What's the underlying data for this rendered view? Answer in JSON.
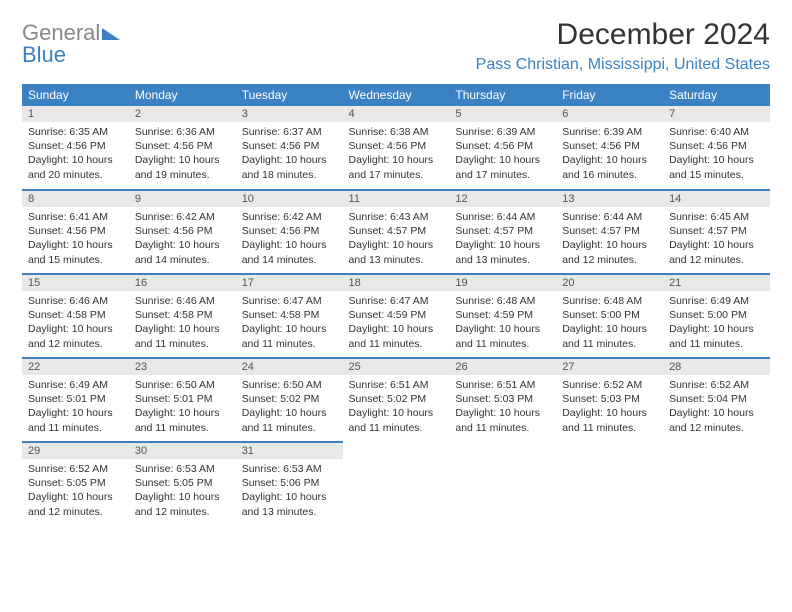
{
  "brand": {
    "part1": "General",
    "part2": "Blue"
  },
  "title": "December 2024",
  "location": "Pass Christian, Mississippi, United States",
  "colors": {
    "accent": "#3b82c4",
    "header_bg": "#3b82c4",
    "daynum_bg": "#e8e8e8",
    "text": "#333333"
  },
  "weekdays": [
    "Sunday",
    "Monday",
    "Tuesday",
    "Wednesday",
    "Thursday",
    "Friday",
    "Saturday"
  ],
  "days": [
    {
      "n": "1",
      "sr": "6:35 AM",
      "ss": "4:56 PM",
      "dl": "10 hours and 20 minutes."
    },
    {
      "n": "2",
      "sr": "6:36 AM",
      "ss": "4:56 PM",
      "dl": "10 hours and 19 minutes."
    },
    {
      "n": "3",
      "sr": "6:37 AM",
      "ss": "4:56 PM",
      "dl": "10 hours and 18 minutes."
    },
    {
      "n": "4",
      "sr": "6:38 AM",
      "ss": "4:56 PM",
      "dl": "10 hours and 17 minutes."
    },
    {
      "n": "5",
      "sr": "6:39 AM",
      "ss": "4:56 PM",
      "dl": "10 hours and 17 minutes."
    },
    {
      "n": "6",
      "sr": "6:39 AM",
      "ss": "4:56 PM",
      "dl": "10 hours and 16 minutes."
    },
    {
      "n": "7",
      "sr": "6:40 AM",
      "ss": "4:56 PM",
      "dl": "10 hours and 15 minutes."
    },
    {
      "n": "8",
      "sr": "6:41 AM",
      "ss": "4:56 PM",
      "dl": "10 hours and 15 minutes."
    },
    {
      "n": "9",
      "sr": "6:42 AM",
      "ss": "4:56 PM",
      "dl": "10 hours and 14 minutes."
    },
    {
      "n": "10",
      "sr": "6:42 AM",
      "ss": "4:56 PM",
      "dl": "10 hours and 14 minutes."
    },
    {
      "n": "11",
      "sr": "6:43 AM",
      "ss": "4:57 PM",
      "dl": "10 hours and 13 minutes."
    },
    {
      "n": "12",
      "sr": "6:44 AM",
      "ss": "4:57 PM",
      "dl": "10 hours and 13 minutes."
    },
    {
      "n": "13",
      "sr": "6:44 AM",
      "ss": "4:57 PM",
      "dl": "10 hours and 12 minutes."
    },
    {
      "n": "14",
      "sr": "6:45 AM",
      "ss": "4:57 PM",
      "dl": "10 hours and 12 minutes."
    },
    {
      "n": "15",
      "sr": "6:46 AM",
      "ss": "4:58 PM",
      "dl": "10 hours and 12 minutes."
    },
    {
      "n": "16",
      "sr": "6:46 AM",
      "ss": "4:58 PM",
      "dl": "10 hours and 11 minutes."
    },
    {
      "n": "17",
      "sr": "6:47 AM",
      "ss": "4:58 PM",
      "dl": "10 hours and 11 minutes."
    },
    {
      "n": "18",
      "sr": "6:47 AM",
      "ss": "4:59 PM",
      "dl": "10 hours and 11 minutes."
    },
    {
      "n": "19",
      "sr": "6:48 AM",
      "ss": "4:59 PM",
      "dl": "10 hours and 11 minutes."
    },
    {
      "n": "20",
      "sr": "6:48 AM",
      "ss": "5:00 PM",
      "dl": "10 hours and 11 minutes."
    },
    {
      "n": "21",
      "sr": "6:49 AM",
      "ss": "5:00 PM",
      "dl": "10 hours and 11 minutes."
    },
    {
      "n": "22",
      "sr": "6:49 AM",
      "ss": "5:01 PM",
      "dl": "10 hours and 11 minutes."
    },
    {
      "n": "23",
      "sr": "6:50 AM",
      "ss": "5:01 PM",
      "dl": "10 hours and 11 minutes."
    },
    {
      "n": "24",
      "sr": "6:50 AM",
      "ss": "5:02 PM",
      "dl": "10 hours and 11 minutes."
    },
    {
      "n": "25",
      "sr": "6:51 AM",
      "ss": "5:02 PM",
      "dl": "10 hours and 11 minutes."
    },
    {
      "n": "26",
      "sr": "6:51 AM",
      "ss": "5:03 PM",
      "dl": "10 hours and 11 minutes."
    },
    {
      "n": "27",
      "sr": "6:52 AM",
      "ss": "5:03 PM",
      "dl": "10 hours and 11 minutes."
    },
    {
      "n": "28",
      "sr": "6:52 AM",
      "ss": "5:04 PM",
      "dl": "10 hours and 12 minutes."
    },
    {
      "n": "29",
      "sr": "6:52 AM",
      "ss": "5:05 PM",
      "dl": "10 hours and 12 minutes."
    },
    {
      "n": "30",
      "sr": "6:53 AM",
      "ss": "5:05 PM",
      "dl": "10 hours and 12 minutes."
    },
    {
      "n": "31",
      "sr": "6:53 AM",
      "ss": "5:06 PM",
      "dl": "10 hours and 13 minutes."
    }
  ],
  "labels": {
    "sunrise": "Sunrise:",
    "sunset": "Sunset:",
    "daylight": "Daylight:"
  },
  "layout": {
    "start_weekday": 0,
    "total_days": 31,
    "cols": 7
  }
}
